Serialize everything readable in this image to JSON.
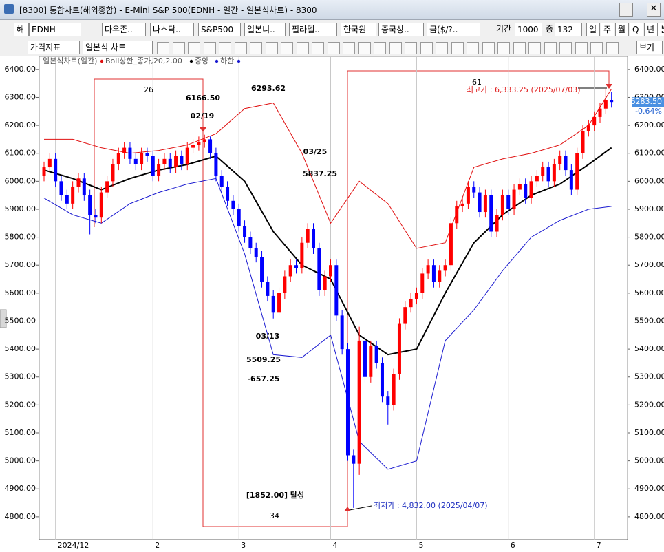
{
  "window": {
    "title": "[8300]  통합차트(해외종합) - E-Mini S&P 500(EDNH - 일간 - 일본식차트) - 8300"
  },
  "toolbar1": [
    "해",
    "EDNH",
    "다우존..",
    "나스닥..",
    "S&P500",
    "일본니..",
    "필라델..",
    "한국원",
    "중국상..",
    "금($/?..",
    "기간",
    "1000",
    "종",
    "132",
    "일",
    "주",
    "월",
    "Q",
    "년",
    "분"
  ],
  "toolbar2": [
    "가격지표",
    "일본식 차트",
    "보기"
  ],
  "chart_data": {
    "type": "candlestick",
    "legend_title": "일본식차트(일간)",
    "up_color": "#ff0000",
    "down_color": "#0000ff",
    "ylim": [
      4716,
      6439
    ],
    "yticks": [
      {
        "value": 4800,
        "label": "4800.00"
      },
      {
        "value": 4900,
        "label": "4900.00"
      },
      {
        "value": 5000,
        "label": "5000.00"
      },
      {
        "value": 5100,
        "label": "5100.00"
      },
      {
        "value": 5200,
        "label": "5200.00"
      },
      {
        "value": 5300,
        "label": "5300.00"
      },
      {
        "value": 5400,
        "label": "5400.00"
      },
      {
        "value": 5500,
        "label": "5500.00"
      },
      {
        "value": 5600,
        "label": "5600.00"
      },
      {
        "value": 5700,
        "label": "5700.00"
      },
      {
        "value": 5800,
        "label": "5800.00"
      },
      {
        "value": 5900,
        "label": "5900.00"
      },
      {
        "value": 6000,
        "label": "6000.00"
      },
      {
        "value": 6100,
        "label": "6100.00"
      },
      {
        "value": 6200,
        "label": "6200.00"
      },
      {
        "value": 6300,
        "label": "6300.00"
      },
      {
        "value": 6400,
        "label": "6400.00"
      }
    ],
    "categories": [
      null,
      null,
      "2024/12",
      null,
      null,
      null,
      null,
      null,
      null,
      null,
      null,
      null,
      null,
      null,
      null,
      null,
      null,
      null,
      null,
      "2",
      null,
      null,
      null,
      null,
      null,
      null,
      null,
      null,
      null,
      null,
      null,
      null,
      null,
      null,
      "3",
      null,
      null,
      null,
      null,
      null,
      null,
      null,
      null,
      null,
      null,
      null,
      null,
      null,
      null,
      null,
      "4",
      null,
      null,
      null,
      null,
      null,
      null,
      null,
      null,
      null,
      null,
      null,
      null,
      null,
      null,
      "5",
      null,
      null,
      null,
      null,
      null,
      null,
      null,
      null,
      null,
      null,
      null,
      null,
      null,
      null,
      null,
      "6",
      null,
      null,
      null,
      null,
      null,
      null,
      null,
      null,
      null,
      null,
      null,
      null,
      null,
      null,
      "7",
      null,
      null,
      null
    ],
    "open": [
      6020,
      6050,
      6080,
      6000,
      5950,
      5920,
      5980,
      6010,
      5950,
      5880,
      5870,
      5960,
      6000,
      6060,
      6100,
      6120,
      6080,
      6060,
      6100,
      6090,
      6020,
      6060,
      6080,
      6050,
      6090,
      6060,
      6120,
      6130,
      6140,
      6150,
      6100,
      6020,
      5980,
      5930,
      5900,
      5840,
      5800,
      5760,
      5730,
      5640,
      5590,
      5530,
      5600,
      5660,
      5700,
      5690,
      5780,
      5830,
      5760,
      5610,
      5660,
      5700,
      5520,
      5400,
      5020,
      4990,
      5430,
      5300,
      5410,
      5350,
      5230,
      5200,
      5310,
      5490,
      5550,
      5580,
      5600,
      5670,
      5700,
      5640,
      5680,
      5700,
      5850,
      5910,
      5920,
      5980,
      5960,
      5890,
      5950,
      5820,
      5880,
      5950,
      5900,
      5970,
      5990,
      5940,
      6000,
      6020,
      6050,
      6000,
      6060,
      6090,
      6040,
      5970,
      6100,
      6180,
      6200,
      6230,
      6260,
      6290
    ],
    "high": [
      6070,
      6100,
      6100,
      6020,
      5970,
      6000,
      6030,
      6030,
      5970,
      5900,
      5980,
      6020,
      6080,
      6120,
      6140,
      6140,
      6100,
      6120,
      6120,
      6110,
      6080,
      6100,
      6100,
      6110,
      6110,
      6140,
      6150,
      6160,
      6166.5,
      6160,
      6120,
      6040,
      6000,
      5950,
      5920,
      5860,
      5820,
      5780,
      5750,
      5660,
      5610,
      5620,
      5680,
      5720,
      5720,
      5800,
      5850,
      5850,
      5780,
      5680,
      5720,
      5720,
      5540,
      5420,
      5040,
      5480,
      5450,
      5430,
      5430,
      5370,
      5250,
      5330,
      5510,
      5570,
      5600,
      5620,
      5690,
      5720,
      5720,
      5700,
      5720,
      5870,
      5930,
      5940,
      6000,
      6000,
      5980,
      5970,
      5970,
      5900,
      5970,
      5970,
      5990,
      6010,
      6010,
      6020,
      6040,
      6070,
      6070,
      6080,
      6110,
      6110,
      6060,
      6120,
      6200,
      6220,
      6250,
      6280,
      6333.25,
      6320
    ],
    "low": [
      6000,
      6030,
      5980,
      5930,
      5900,
      5900,
      5960,
      5930,
      5810,
      5850,
      5850,
      5940,
      5980,
      6040,
      6080,
      6060,
      6040,
      6040,
      6070,
      6000,
      6000,
      6040,
      6030,
      6030,
      6040,
      6040,
      6100,
      6110,
      6120,
      6080,
      6000,
      5960,
      5910,
      5880,
      5820,
      5780,
      5740,
      5710,
      5620,
      5570,
      5509.25,
      5520,
      5580,
      5640,
      5670,
      5670,
      5760,
      5740,
      5590,
      5590,
      5640,
      5500,
      5380,
      5000,
      4832,
      4950,
      5280,
      5280,
      5330,
      5210,
      5130,
      5180,
      5290,
      5470,
      5530,
      5560,
      5580,
      5650,
      5620,
      5620,
      5660,
      5680,
      5830,
      5890,
      5900,
      5940,
      5870,
      5870,
      5800,
      5800,
      5860,
      5880,
      5880,
      5950,
      5920,
      5920,
      5980,
      6000,
      5980,
      5980,
      6040,
      6020,
      5950,
      5950,
      6080,
      6160,
      6180,
      6210,
      6240,
      6263.5
    ],
    "close": [
      6050,
      6080,
      6000,
      5950,
      5920,
      5980,
      6010,
      5950,
      5880,
      5870,
      5960,
      6000,
      6060,
      6100,
      6120,
      6080,
      6060,
      6100,
      6090,
      6020,
      6060,
      6080,
      6050,
      6090,
      6060,
      6120,
      6130,
      6140,
      6150,
      6100,
      6020,
      5980,
      5930,
      5900,
      5840,
      5800,
      5760,
      5730,
      5640,
      5590,
      5530,
      5600,
      5660,
      5700,
      5690,
      5780,
      5830,
      5760,
      5610,
      5660,
      5700,
      5520,
      5400,
      5020,
      4990,
      5430,
      5300,
      5410,
      5350,
      5230,
      5200,
      5310,
      5490,
      5550,
      5580,
      5600,
      5670,
      5700,
      5640,
      5680,
      5700,
      5850,
      5910,
      5920,
      5980,
      5960,
      5890,
      5950,
      5820,
      5880,
      5950,
      5900,
      5970,
      5990,
      5940,
      6000,
      6020,
      6050,
      6000,
      6060,
      6090,
      6040,
      5970,
      6100,
      6180,
      6200,
      6230,
      6260,
      6290,
      6283.5
    ],
    "bands": [
      {
        "name": "Boll상한_종가,20,2.00",
        "color": "#e01010",
        "width": 1,
        "x": [
          0,
          5,
          10,
          15,
          20,
          25,
          30,
          35,
          40,
          45,
          50,
          55,
          60,
          65,
          70,
          75,
          80,
          85,
          90,
          95,
          99
        ],
        "values": [
          6150,
          6150,
          6120,
          6100,
          6110,
          6130,
          6170,
          6260,
          6280,
          6100,
          5850,
          6000,
          5920,
          5760,
          5780,
          6050,
          6080,
          6100,
          6130,
          6200,
          6330
        ]
      },
      {
        "name": "중앙",
        "color": "#000000",
        "width": 2,
        "x": [
          0,
          5,
          10,
          15,
          20,
          25,
          30,
          35,
          40,
          45,
          50,
          55,
          60,
          65,
          70,
          75,
          80,
          85,
          90,
          95,
          99
        ],
        "values": [
          6040,
          6010,
          5970,
          6010,
          6040,
          6060,
          6090,
          6000,
          5820,
          5700,
          5650,
          5450,
          5380,
          5400,
          5600,
          5780,
          5880,
          5950,
          5990,
          6060,
          6120
        ]
      },
      {
        "name": "하한",
        "color": "#1a1ad0",
        "width": 1,
        "x": [
          0,
          5,
          10,
          15,
          20,
          25,
          30,
          35,
          40,
          45,
          50,
          55,
          60,
          65,
          70,
          75,
          80,
          85,
          90,
          95,
          99
        ],
        "values": [
          5940,
          5880,
          5850,
          5920,
          5960,
          5990,
          6010,
          5740,
          5380,
          5370,
          5450,
          5070,
          4970,
          5000,
          5430,
          5540,
          5680,
          5800,
          5860,
          5900,
          5910
        ]
      }
    ],
    "last_price": {
      "value": 6283.5,
      "label": "6283.50"
    },
    "change": "-0.64%",
    "annotations": [
      {
        "text": "26"
      },
      {
        "text": "6166.50"
      },
      {
        "text": "02/19"
      },
      {
        "text": "6293.62"
      },
      {
        "text": "03/25"
      },
      {
        "text": "5837.25"
      },
      {
        "text": "03/13"
      },
      {
        "text": "5509.25"
      },
      {
        "text": "-657.25"
      },
      {
        "text": "[1852.00] 달성"
      },
      {
        "text": "34"
      },
      {
        "text": "61"
      },
      {
        "text": "최고가 : 6,333.25 (2025/07/03)",
        "color": "#e02020"
      },
      {
        "text": "최저가 : 4,832.00 (2025/04/07)",
        "color": "#2030c0"
      }
    ]
  }
}
